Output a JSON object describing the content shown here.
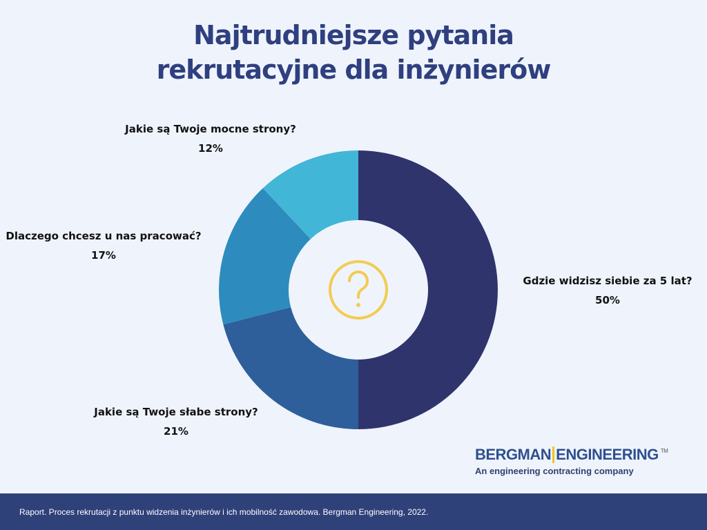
{
  "title": {
    "line1": "Najtrudniejsze pytania",
    "line2": "rekrutacyjne dla inżynierów"
  },
  "chart_data": {
    "type": "pie",
    "variant": "donut",
    "categories": [
      "Gdzie widzisz siebie za 5 lat?",
      "Jakie są Twoje słabe strony?",
      "Dlaczego chcesz u nas pracować?",
      "Jakie są Twoje mocne strony?"
    ],
    "values": [
      50,
      21,
      17,
      12
    ],
    "value_labels": [
      "50%",
      "21%",
      "17%",
      "12%"
    ],
    "colors": [
      "#30346c",
      "#2e5f9a",
      "#2d8cbd",
      "#42b6d7"
    ],
    "center_icon": "question-mark-circle-icon",
    "center_icon_color": "#f2cc52",
    "legend": "none"
  },
  "brand": {
    "name_left": "BERGMAN",
    "name_right": "ENGINEERING",
    "trademark": "TM",
    "tagline": "An engineering contracting company",
    "bar_color": "#f0c419"
  },
  "footer": {
    "source": "Raport. Proces rekrutacji z punktu widzenia inżynierów i ich mobilność zawodowa. Bergman Engineering, 2022."
  }
}
